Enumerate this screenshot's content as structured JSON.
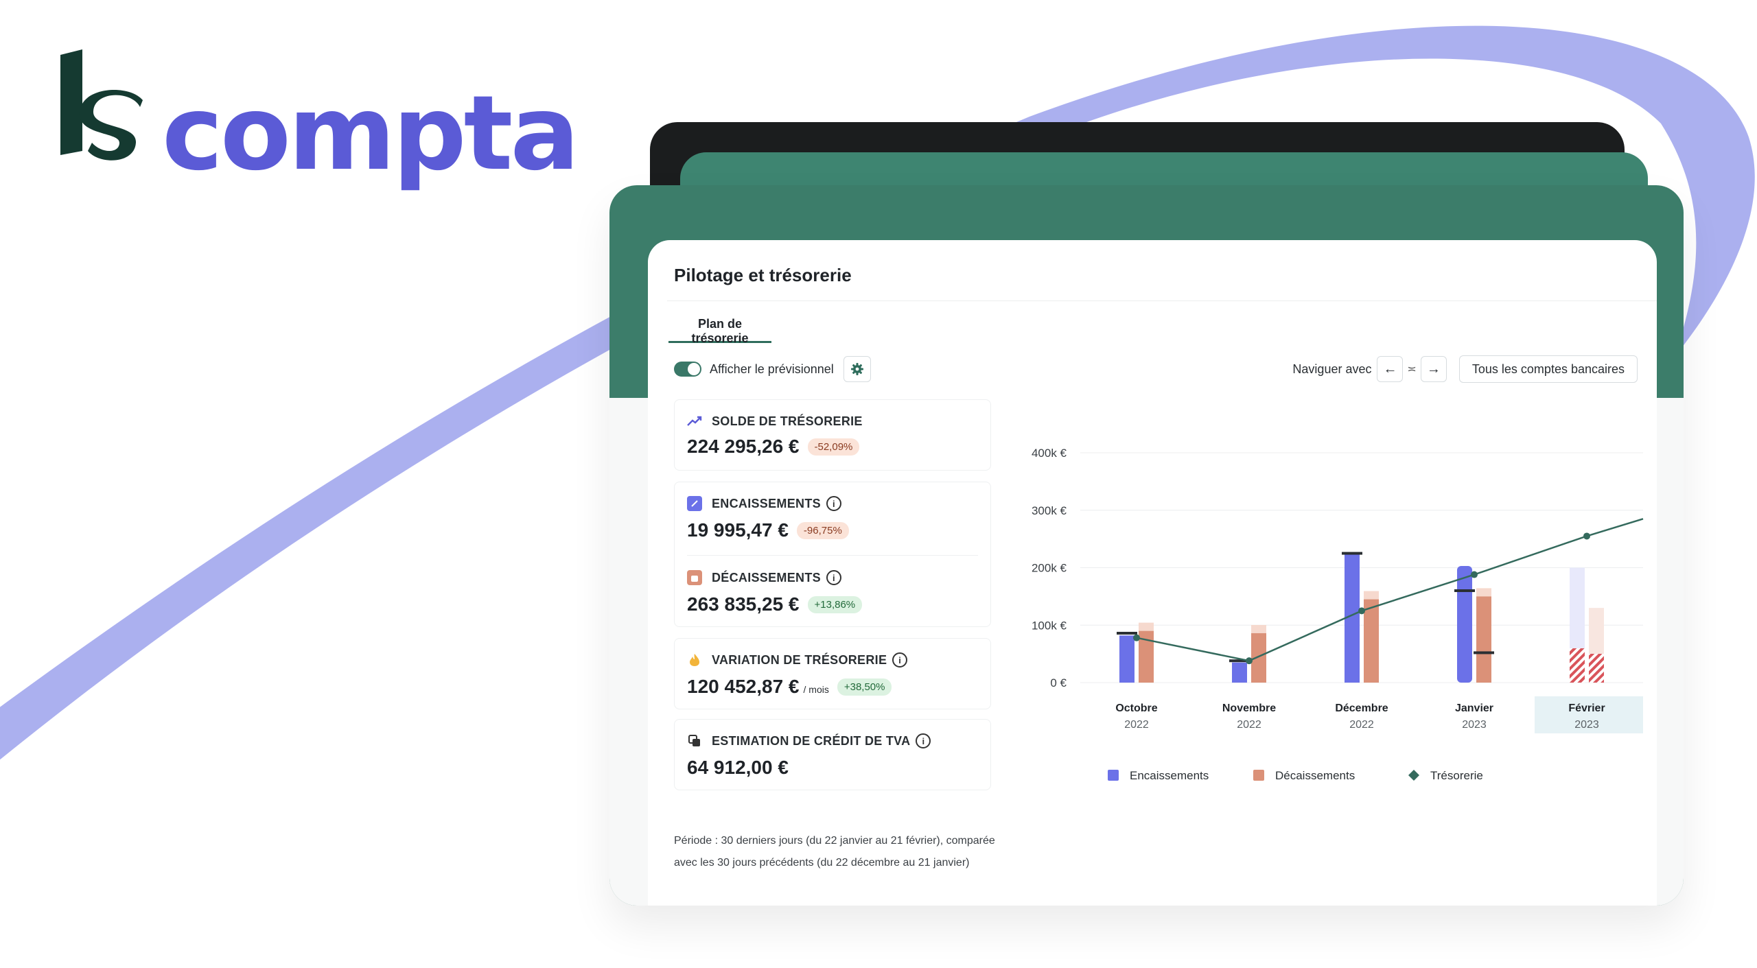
{
  "brand": {
    "logo_text": "compta",
    "mark_text": "ls",
    "accent_color": "#5b5bd6",
    "mark_color": "#153a31"
  },
  "page": {
    "title": "Pilotage et trésorerie"
  },
  "tabs": [
    {
      "label": "Plan de trésorerie",
      "active": true
    }
  ],
  "toolbar": {
    "toggle_label": "Afficher le prévisionnel",
    "toggle_on": true,
    "settings_icon": "gear-icon",
    "navigate_label": "Naviguer avec",
    "nav_left_icon": "arrow-left-icon",
    "nav_separator": "≍",
    "nav_right_icon": "arrow-right-icon",
    "accounts_button": "Tous les comptes bancaires"
  },
  "kpis": {
    "solde": {
      "label": "SOLDE DE TRÉSORERIE",
      "value": "224 295,26 €",
      "change": "-52,09%",
      "icon": "trend-up-icon"
    },
    "encaissements": {
      "label": "ENCAISSEMENTS",
      "value": "19 995,47 €",
      "change": "-96,75%",
      "icon": "pen-icon"
    },
    "decaissements": {
      "label": "DÉCAISSEMENTS",
      "value": "263 835,25 €",
      "change": "+13,86%",
      "icon": "bag-icon"
    },
    "variation": {
      "label": "VARIATION DE TRÉSORERIE",
      "value": "120 452,87 €",
      "suffix": "/ mois",
      "change": "+38,50%",
      "icon": "fire-icon"
    },
    "tva": {
      "label": "ESTIMATION DE CRÉDIT DE TVA",
      "value": "64 912,00 €",
      "icon": "copy-icon"
    }
  },
  "footnote": "Période : 30 derniers jours (du 22 janvier au 21 février), comparée avec les 30 jours précédents (du 22 décembre au 21 janvier)",
  "chart_data": {
    "type": "bar",
    "categories": [
      {
        "month": "Octobre",
        "year": "2022"
      },
      {
        "month": "Novembre",
        "year": "2022"
      },
      {
        "month": "Décembre",
        "year": "2022"
      },
      {
        "month": "Janvier",
        "year": "2023"
      },
      {
        "month": "Février",
        "year": "2023"
      }
    ],
    "highlighted_category": 4,
    "y_ticks": [
      "0 €",
      "100k €",
      "200k €",
      "300k €",
      "400k €"
    ],
    "ylim": [
      0,
      400000
    ],
    "series": [
      {
        "name": "Encaissements",
        "type": "bar",
        "color": "#6b71e8",
        "values": [
          82000,
          35000,
          225000,
          203000,
          200000
        ],
        "forecast": [
          false,
          false,
          false,
          false,
          true
        ]
      },
      {
        "name": "Décaissements",
        "type": "bar",
        "color": "#db9178",
        "values": [
          90000,
          86000,
          145000,
          150000,
          130000
        ],
        "forecast": [
          false,
          false,
          false,
          false,
          true
        ]
      },
      {
        "name": "Trésorerie",
        "type": "line",
        "color": "#346a5d",
        "values": [
          78000,
          38000,
          125000,
          188000,
          255000
        ],
        "extends_to": 285000
      }
    ],
    "forecast_markers": [
      {
        "category": 0,
        "value": 86000
      },
      {
        "category": 1,
        "value": 38000
      },
      {
        "category": 2,
        "value": 225000
      },
      {
        "category": 3,
        "value": 160000
      },
      {
        "category": 3,
        "value": 52000
      }
    ],
    "legend_position": "bottom",
    "grid": true
  }
}
